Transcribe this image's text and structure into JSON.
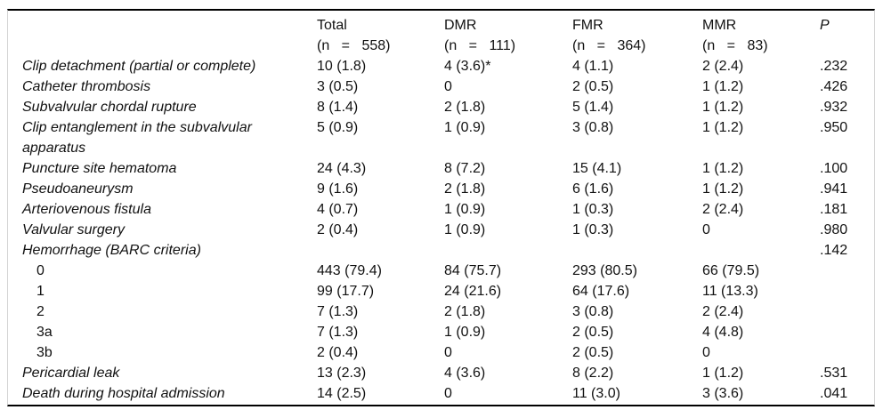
{
  "table": {
    "columns": [
      {
        "label": "Total",
        "sub": "(n = 558)"
      },
      {
        "label": "DMR",
        "sub": "(n = 111)"
      },
      {
        "label": "FMR",
        "sub": "(n = 364)"
      },
      {
        "label": "MMR",
        "sub": "(n = 83)"
      },
      {
        "label": "P",
        "sub": ""
      }
    ],
    "rows": [
      {
        "label": "Clip detachment (partial or complete)",
        "italic": true,
        "indent": false,
        "values": [
          "10 (1.8)",
          "4 (3.6)*",
          "4 (1.1)",
          "2 (2.4)"
        ],
        "p": ".232"
      },
      {
        "label": "Catheter thrombosis",
        "italic": true,
        "indent": false,
        "values": [
          "3 (0.5)",
          "0",
          "2 (0.5)",
          "1 (1.2)"
        ],
        "p": ".426"
      },
      {
        "label": "Subvalvular chordal rupture",
        "italic": true,
        "indent": false,
        "values": [
          "8 (1.4)",
          "2 (1.8)",
          "5 (1.4)",
          "1 (1.2)"
        ],
        "p": ".932"
      },
      {
        "label": "Clip entanglement in the subvalvular apparatus",
        "italic": true,
        "indent": false,
        "values": [
          "5 (0.9)",
          "1 (0.9)",
          "3 (0.8)",
          "1 (1.2)"
        ],
        "p": ".950"
      },
      {
        "label": "Puncture site hematoma",
        "italic": true,
        "indent": false,
        "values": [
          "24 (4.3)",
          "8 (7.2)",
          "15 (4.1)",
          "1 (1.2)"
        ],
        "p": ".100"
      },
      {
        "label": "Pseudoaneurysm",
        "italic": true,
        "indent": false,
        "values": [
          "9 (1.6)",
          "2 (1.8)",
          "6 (1.6)",
          "1 (1.2)"
        ],
        "p": ".941"
      },
      {
        "label": "Arteriovenous fistula",
        "italic": true,
        "indent": false,
        "values": [
          "4 (0.7)",
          "1 (0.9)",
          "1 (0.3)",
          "2 (2.4)"
        ],
        "p": ".181"
      },
      {
        "label": "Valvular surgery",
        "italic": true,
        "indent": false,
        "values": [
          "2 (0.4)",
          "1 (0.9)",
          "1 (0.3)",
          "0"
        ],
        "p": ".980"
      },
      {
        "label": "Hemorrhage (BARC criteria)",
        "italic": true,
        "indent": false,
        "values": [
          "",
          "",
          "",
          ""
        ],
        "p": ".142"
      },
      {
        "label": "0",
        "italic": false,
        "indent": true,
        "values": [
          "443 (79.4)",
          "84 (75.7)",
          "293 (80.5)",
          "66 (79.5)"
        ],
        "p": ""
      },
      {
        "label": "1",
        "italic": false,
        "indent": true,
        "values": [
          "99 (17.7)",
          "24 (21.6)",
          "64 (17.6)",
          "11 (13.3)"
        ],
        "p": ""
      },
      {
        "label": "2",
        "italic": false,
        "indent": true,
        "values": [
          "7 (1.3)",
          "2 (1.8)",
          "3 (0.8)",
          "2 (2.4)"
        ],
        "p": ""
      },
      {
        "label": "3a",
        "italic": false,
        "indent": true,
        "values": [
          "7 (1.3)",
          "1 (0.9)",
          "2 (0.5)",
          "4 (4.8)"
        ],
        "p": ""
      },
      {
        "label": "3b",
        "italic": false,
        "indent": true,
        "values": [
          "2 (0.4)",
          "0",
          "2 (0.5)",
          "0"
        ],
        "p": ""
      },
      {
        "label": "Pericardial leak",
        "italic": true,
        "indent": false,
        "values": [
          "13 (2.3)",
          "4 (3.6)",
          "8 (2.2)",
          "1 (1.2)"
        ],
        "p": ".531"
      },
      {
        "label": "Death during hospital admission",
        "italic": true,
        "indent": false,
        "values": [
          "14 (2.5)",
          "0",
          "11 (3.0)",
          "3 (3.6)"
        ],
        "p": ".041"
      }
    ]
  }
}
